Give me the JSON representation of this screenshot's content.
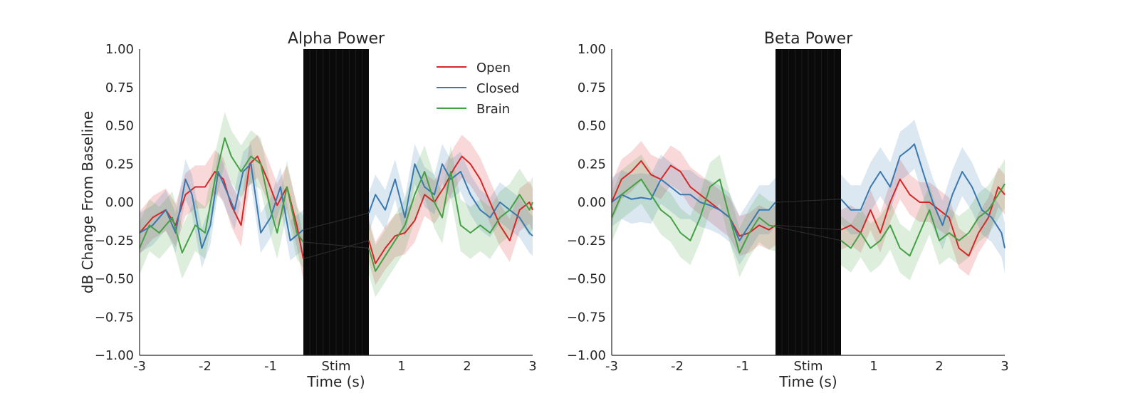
{
  "figure": {
    "ylabel": "dB Change From Baseline",
    "colors": {
      "open": "#d62728",
      "closed": "#3a78b0",
      "brain": "#44a044",
      "stim": "#0a0a0a",
      "axis": "#262626"
    }
  },
  "chart_data": [
    {
      "type": "line",
      "title": "Alpha Power",
      "xlabel": "Time (s)",
      "ylabel": "dB Change From Baseline",
      "xlim": [
        -3,
        3
      ],
      "ylim": [
        -1,
        1
      ],
      "xticks": [
        -3,
        -2,
        -1,
        0,
        1,
        2,
        3
      ],
      "xtick_labels": [
        "-3",
        "-2",
        "-1",
        "Stim",
        "1",
        "2",
        "3"
      ],
      "yticks": [
        -1,
        -0.75,
        -0.5,
        -0.25,
        0,
        0.25,
        0.5,
        0.75,
        1
      ],
      "ytick_labels": [
        "−1.00",
        "−0.75",
        "−0.50",
        "−0.25",
        "0.00",
        "0.25",
        "0.50",
        "0.75",
        "1.00"
      ],
      "stim_window": [
        -0.5,
        0.5
      ],
      "legend": {
        "position": "top-right",
        "entries": [
          "Open",
          "Closed",
          "Brain"
        ]
      },
      "series": [
        {
          "name": "Open",
          "color": "#d62728",
          "band": 0.14,
          "x": [
            -3,
            -2.8,
            -2.6,
            -2.45,
            -2.3,
            -2.15,
            -2,
            -1.85,
            -1.72,
            -1.6,
            -1.45,
            -1.32,
            -1.2,
            -1.05,
            -0.9,
            -0.75,
            -0.6,
            -0.5,
            0.5,
            0.6,
            0.75,
            0.9,
            1.05,
            1.2,
            1.35,
            1.5,
            1.65,
            1.8,
            1.92,
            2.05,
            2.2,
            2.35,
            2.5,
            2.65,
            2.8,
            2.95,
            3
          ],
          "y": [
            -0.2,
            -0.1,
            -0.05,
            -0.15,
            0.05,
            0.1,
            0.1,
            0.2,
            0.15,
            -0.02,
            -0.15,
            0.25,
            0.3,
            0.15,
            -0.02,
            0.1,
            -0.15,
            -0.37,
            -0.25,
            -0.4,
            -0.3,
            -0.22,
            -0.2,
            -0.12,
            0.05,
            0.0,
            0.1,
            0.22,
            0.3,
            0.25,
            0.15,
            0.0,
            -0.15,
            -0.25,
            -0.05,
            0.0,
            -0.05
          ]
        },
        {
          "name": "Closed",
          "color": "#3a78b0",
          "band": 0.13,
          "x": [
            -3,
            -2.8,
            -2.6,
            -2.45,
            -2.3,
            -2.2,
            -2.05,
            -1.92,
            -1.8,
            -1.7,
            -1.55,
            -1.42,
            -1.3,
            -1.15,
            -1,
            -0.85,
            -0.7,
            -0.5,
            0.5,
            0.6,
            0.75,
            0.9,
            1.05,
            1.2,
            1.35,
            1.5,
            1.62,
            1.75,
            1.9,
            2.05,
            2.2,
            2.35,
            2.5,
            2.65,
            2.8,
            2.95,
            3
          ],
          "y": [
            -0.2,
            -0.15,
            -0.05,
            -0.2,
            0.15,
            0.05,
            -0.3,
            -0.15,
            0.2,
            0.1,
            -0.05,
            0.2,
            0.25,
            -0.2,
            -0.1,
            0.1,
            -0.25,
            -0.18,
            -0.07,
            0.05,
            -0.05,
            0.15,
            -0.1,
            0.25,
            0.1,
            0.05,
            0.25,
            0.15,
            0.2,
            0.05,
            -0.05,
            -0.1,
            0.0,
            -0.05,
            -0.1,
            -0.2,
            -0.22
          ]
        },
        {
          "name": "Brain",
          "color": "#44a044",
          "band": 0.17,
          "x": [
            -3,
            -2.85,
            -2.7,
            -2.5,
            -2.35,
            -2.15,
            -2.0,
            -1.85,
            -1.7,
            -1.6,
            -1.45,
            -1.3,
            -1.15,
            -1.0,
            -0.9,
            -0.75,
            -0.6,
            -0.5,
            0.5,
            0.6,
            0.75,
            0.9,
            1.05,
            1.2,
            1.35,
            1.5,
            1.62,
            1.75,
            1.9,
            2.05,
            2.2,
            2.35,
            2.5,
            2.65,
            2.8,
            2.95,
            3
          ],
          "y": [
            -0.3,
            -0.15,
            -0.2,
            -0.1,
            -0.33,
            -0.15,
            -0.2,
            0.15,
            0.42,
            0.3,
            0.2,
            0.3,
            0.25,
            -0.05,
            -0.2,
            0.1,
            -0.2,
            -0.26,
            -0.3,
            -0.45,
            -0.35,
            -0.25,
            -0.15,
            0.05,
            0.2,
            0.0,
            -0.1,
            0.2,
            -0.15,
            -0.2,
            -0.15,
            -0.2,
            -0.1,
            -0.05,
            0.05,
            -0.05,
            0.0
          ]
        }
      ]
    },
    {
      "type": "line",
      "title": "Beta Power",
      "xlabel": "Time (s)",
      "xlim": [
        -3,
        3
      ],
      "ylim": [
        -1,
        1
      ],
      "xticks": [
        -3,
        -2,
        -1,
        0,
        1,
        2,
        3
      ],
      "xtick_labels": [
        "-3",
        "-2",
        "-1",
        "Stim",
        "1",
        "2",
        "3"
      ],
      "yticks": [
        -1,
        -0.75,
        -0.5,
        -0.25,
        0,
        0.25,
        0.5,
        0.75,
        1
      ],
      "ytick_labels": [
        "−1.00",
        "−0.75",
        "−0.50",
        "−0.25",
        "0.00",
        "0.25",
        "0.50",
        "0.75",
        "1.00"
      ],
      "stim_window": [
        -0.5,
        0.5
      ],
      "series": [
        {
          "name": "Open",
          "color": "#d62728",
          "band": 0.13,
          "x": [
            -3,
            -2.85,
            -2.7,
            -2.55,
            -2.4,
            -2.25,
            -2.1,
            -1.95,
            -1.8,
            -1.65,
            -1.5,
            -1.35,
            -1.2,
            -1.05,
            -0.9,
            -0.75,
            -0.6,
            -0.5,
            0.5,
            0.65,
            0.8,
            0.95,
            1.1,
            1.25,
            1.4,
            1.55,
            1.7,
            1.85,
            2.0,
            2.15,
            2.3,
            2.45,
            2.6,
            2.75,
            2.9,
            3
          ],
          "y": [
            0.0,
            0.15,
            0.2,
            0.27,
            0.18,
            0.15,
            0.24,
            0.2,
            0.1,
            0.05,
            0.0,
            -0.05,
            -0.1,
            -0.22,
            -0.2,
            -0.15,
            -0.18,
            -0.15,
            -0.18,
            -0.15,
            -0.2,
            -0.05,
            -0.2,
            0.0,
            0.15,
            0.05,
            0.0,
            0.0,
            -0.05,
            -0.1,
            -0.3,
            -0.35,
            -0.2,
            -0.1,
            0.1,
            0.05
          ]
        },
        {
          "name": "Closed",
          "color": "#3a78b0",
          "band": 0.16,
          "x": [
            -3,
            -2.85,
            -2.7,
            -2.55,
            -2.4,
            -2.25,
            -2.1,
            -1.95,
            -1.8,
            -1.65,
            -1.5,
            -1.35,
            -1.2,
            -1.05,
            -0.9,
            -0.75,
            -0.6,
            -0.5,
            0.5,
            0.65,
            0.8,
            0.95,
            1.1,
            1.25,
            1.4,
            1.55,
            1.62,
            1.75,
            1.9,
            2.05,
            2.2,
            2.35,
            2.5,
            2.65,
            2.8,
            2.95,
            3
          ],
          "y": [
            0.0,
            0.05,
            0.02,
            0.03,
            0.02,
            0.15,
            0.1,
            0.05,
            0.05,
            0.0,
            -0.02,
            -0.05,
            -0.1,
            -0.25,
            -0.15,
            -0.05,
            -0.05,
            0.0,
            0.02,
            -0.05,
            -0.05,
            0.1,
            0.2,
            0.1,
            0.3,
            0.35,
            0.38,
            0.2,
            0.0,
            -0.15,
            0.05,
            0.2,
            0.1,
            -0.05,
            -0.1,
            -0.2,
            -0.3
          ]
        },
        {
          "name": "Brain",
          "color": "#44a044",
          "band": 0.16,
          "x": [
            -3,
            -2.85,
            -2.7,
            -2.55,
            -2.4,
            -2.25,
            -2.1,
            -1.95,
            -1.8,
            -1.65,
            -1.5,
            -1.35,
            -1.2,
            -1.05,
            -0.9,
            -0.75,
            -0.6,
            -0.5,
            0.5,
            0.65,
            0.8,
            0.95,
            1.1,
            1.25,
            1.4,
            1.55,
            1.7,
            1.85,
            2.0,
            2.15,
            2.3,
            2.45,
            2.6,
            2.75,
            2.9,
            3
          ],
          "y": [
            -0.1,
            0.05,
            0.1,
            0.15,
            0.05,
            -0.05,
            -0.1,
            -0.2,
            -0.25,
            -0.1,
            0.1,
            0.15,
            -0.1,
            -0.33,
            -0.2,
            -0.1,
            -0.15,
            -0.16,
            -0.25,
            -0.3,
            -0.2,
            -0.3,
            -0.25,
            -0.15,
            -0.3,
            -0.35,
            -0.2,
            -0.05,
            -0.25,
            -0.2,
            -0.25,
            -0.2,
            -0.1,
            -0.05,
            0.05,
            0.12
          ]
        }
      ]
    }
  ]
}
